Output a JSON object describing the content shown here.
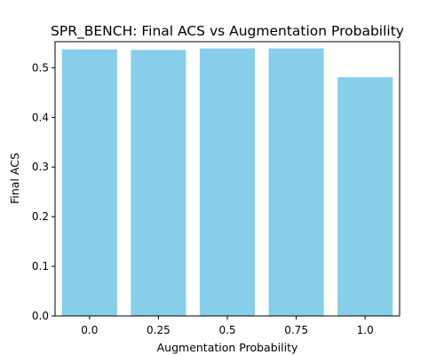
{
  "chart_data": {
    "type": "bar",
    "title": "SPR_BENCH: Final ACS vs Augmentation Probability",
    "xlabel": "Augmentation Probability",
    "ylabel": "Final ACS",
    "categories": [
      "0.0",
      "0.25",
      "0.5",
      "0.75",
      "1.0"
    ],
    "values": [
      0.537,
      0.536,
      0.539,
      0.539,
      0.481
    ],
    "ylim": [
      0,
      0.5525
    ],
    "yticks": [
      0.0,
      0.1,
      0.2,
      0.3,
      0.4,
      0.5
    ],
    "ytick_labels": [
      "0.0",
      "0.1",
      "0.2",
      "0.3",
      "0.4",
      "0.5"
    ],
    "bar_color": "#87ceeb",
    "grid": false,
    "legend": "none"
  }
}
